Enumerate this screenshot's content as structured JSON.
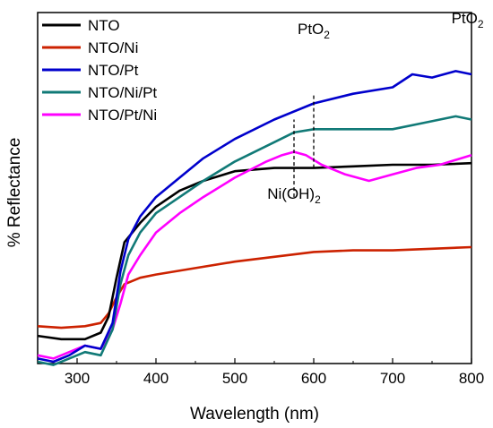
{
  "chart_data": {
    "type": "line",
    "xlabel": "Wavelength (nm)",
    "ylabel": "% Reflectance",
    "xlim": [
      250,
      800
    ],
    "ylim": [
      0,
      100
    ],
    "xticks": [
      300,
      400,
      500,
      600,
      700,
      800
    ],
    "yticks_shown": false,
    "grid": false,
    "legend_position": "top-left",
    "series": [
      {
        "name": "NTO",
        "color": "#000000",
        "points": [
          [
            250,
            8
          ],
          [
            280,
            7
          ],
          [
            310,
            7
          ],
          [
            330,
            9
          ],
          [
            340,
            14
          ],
          [
            350,
            26
          ],
          [
            360,
            37
          ],
          [
            380,
            43
          ],
          [
            400,
            48
          ],
          [
            430,
            53
          ],
          [
            460,
            56
          ],
          [
            500,
            59
          ],
          [
            550,
            60
          ],
          [
            600,
            60
          ],
          [
            650,
            60.5
          ],
          [
            700,
            61
          ],
          [
            750,
            61
          ],
          [
            800,
            61.5
          ]
        ]
      },
      {
        "name": "NTO/Ni",
        "color": "#cc2200",
        "points": [
          [
            250,
            11
          ],
          [
            280,
            10.5
          ],
          [
            310,
            11
          ],
          [
            330,
            12
          ],
          [
            340,
            15
          ],
          [
            350,
            20
          ],
          [
            360,
            24
          ],
          [
            380,
            26
          ],
          [
            400,
            27
          ],
          [
            450,
            29
          ],
          [
            500,
            31
          ],
          [
            550,
            32.5
          ],
          [
            600,
            34
          ],
          [
            650,
            34.5
          ],
          [
            700,
            34.5
          ],
          [
            750,
            35
          ],
          [
            800,
            35.5
          ]
        ]
      },
      {
        "name": "NTO/Pt",
        "color": "#0000cc",
        "points": [
          [
            250,
            1
          ],
          [
            270,
            0
          ],
          [
            290,
            2
          ],
          [
            310,
            5
          ],
          [
            330,
            4
          ],
          [
            345,
            12
          ],
          [
            355,
            28
          ],
          [
            365,
            38
          ],
          [
            380,
            45
          ],
          [
            400,
            51
          ],
          [
            430,
            57
          ],
          [
            460,
            63
          ],
          [
            500,
            69
          ],
          [
            550,
            75
          ],
          [
            600,
            80
          ],
          [
            650,
            83
          ],
          [
            700,
            85
          ],
          [
            725,
            89
          ],
          [
            750,
            88
          ],
          [
            780,
            90
          ],
          [
            800,
            89
          ]
        ]
      },
      {
        "name": "NTO/Ni/Pt",
        "color": "#117a77",
        "points": [
          [
            250,
            0
          ],
          [
            270,
            -1
          ],
          [
            290,
            1
          ],
          [
            310,
            3
          ],
          [
            330,
            2
          ],
          [
            345,
            10
          ],
          [
            355,
            24
          ],
          [
            365,
            33
          ],
          [
            380,
            40
          ],
          [
            400,
            46
          ],
          [
            430,
            51
          ],
          [
            460,
            56
          ],
          [
            500,
            62
          ],
          [
            550,
            68
          ],
          [
            575,
            71
          ],
          [
            600,
            72
          ],
          [
            650,
            72
          ],
          [
            700,
            72
          ],
          [
            740,
            74
          ],
          [
            780,
            76
          ],
          [
            800,
            75
          ]
        ]
      },
      {
        "name": "NTO/Pt/Ni",
        "color": "#ff00ff",
        "points": [
          [
            250,
            2
          ],
          [
            270,
            1
          ],
          [
            290,
            3
          ],
          [
            310,
            5
          ],
          [
            330,
            4
          ],
          [
            345,
            10
          ],
          [
            355,
            18
          ],
          [
            365,
            27
          ],
          [
            380,
            33
          ],
          [
            400,
            40
          ],
          [
            430,
            46
          ],
          [
            460,
            51
          ],
          [
            500,
            57
          ],
          [
            540,
            62
          ],
          [
            560,
            64
          ],
          [
            575,
            65
          ],
          [
            590,
            64
          ],
          [
            610,
            61
          ],
          [
            640,
            58
          ],
          [
            670,
            56
          ],
          [
            700,
            58
          ],
          [
            730,
            60
          ],
          [
            760,
            61
          ],
          [
            800,
            64
          ]
        ]
      }
    ],
    "annotations": [
      {
        "text": "PtO",
        "sub": "2",
        "x": 600
      },
      {
        "text": "PtO",
        "sub": "2",
        "x": 795
      },
      {
        "text": "Ni(OH)",
        "sub": "2",
        "x": 575
      }
    ],
    "dashed_markers": [
      {
        "x": 575,
        "y_from": 51,
        "y_to": 75
      },
      {
        "x": 600,
        "y_from": 60,
        "y_to": 83
      }
    ]
  }
}
